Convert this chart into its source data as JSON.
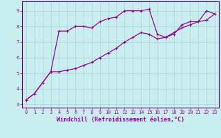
{
  "xlabel": "Windchill (Refroidissement éolien,°C)",
  "background_color": "#c8eef0",
  "grid_color": "#b0d0d8",
  "line_color": "#990099",
  "xlim": [
    -0.5,
    23.5
  ],
  "ylim": [
    2.8,
    9.6
  ],
  "xticks": [
    0,
    1,
    2,
    3,
    4,
    5,
    6,
    7,
    8,
    9,
    10,
    11,
    12,
    13,
    14,
    15,
    16,
    17,
    18,
    19,
    20,
    21,
    22,
    23
  ],
  "yticks": [
    3,
    4,
    5,
    6,
    7,
    8,
    9
  ],
  "line1_x": [
    0,
    1,
    2,
    3,
    4,
    5,
    6,
    7,
    8,
    9,
    10,
    11,
    12,
    13,
    14,
    15,
    16,
    17,
    18,
    19,
    20,
    21,
    22,
    23
  ],
  "line1_y": [
    3.3,
    3.7,
    4.4,
    5.1,
    5.1,
    5.2,
    5.3,
    5.5,
    5.7,
    6.0,
    6.3,
    6.6,
    7.0,
    7.3,
    7.6,
    7.5,
    7.2,
    7.3,
    7.6,
    7.9,
    8.1,
    8.3,
    8.4,
    8.8
  ],
  "line2_x": [
    0,
    1,
    2,
    3,
    4,
    5,
    6,
    7,
    8,
    9,
    10,
    11,
    12,
    13,
    14,
    15,
    16,
    17,
    18,
    19,
    20,
    21,
    22,
    23
  ],
  "line2_y": [
    3.3,
    3.7,
    4.4,
    5.1,
    7.7,
    7.7,
    8.0,
    8.0,
    7.9,
    8.3,
    8.5,
    8.6,
    9.0,
    9.0,
    9.0,
    9.1,
    7.5,
    7.3,
    7.5,
    8.1,
    8.3,
    8.3,
    9.0,
    8.8
  ],
  "marker": "+",
  "markersize": 3.5,
  "linewidth": 0.9,
  "tick_fontsize": 5,
  "xlabel_fontsize": 6,
  "line_color2": "#cc44cc"
}
